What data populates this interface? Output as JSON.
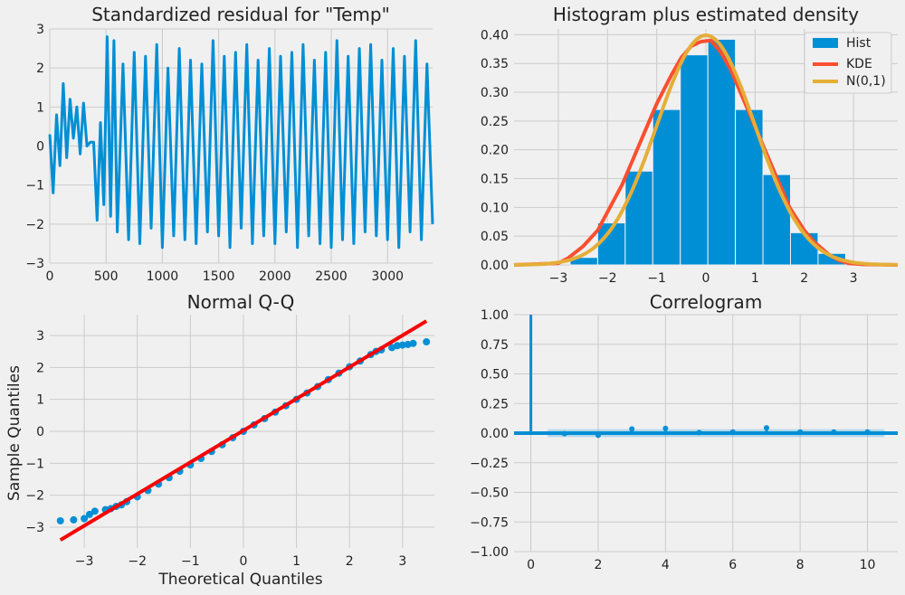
{
  "chart_data": [
    {
      "type": "line",
      "title": "Standardized residual for \"Temp\"",
      "xlabel": "",
      "ylabel": "",
      "xlim": [
        0,
        3400
      ],
      "ylim": [
        -3,
        3
      ],
      "x_ticks": [
        "0",
        "500",
        "1000",
        "1500",
        "2000",
        "2500",
        "3000"
      ],
      "y_ticks": [
        "3",
        "2",
        "1",
        "0",
        "−1",
        "−2",
        "−3"
      ],
      "grid": true,
      "series": [
        {
          "color": "#008fd5",
          "x": [
            0,
            30,
            60,
            90,
            120,
            150,
            180,
            210,
            240,
            270,
            300,
            330,
            360,
            390,
            420,
            450,
            480,
            510,
            540,
            570,
            600,
            650,
            700,
            750,
            800,
            850,
            900,
            950,
            1000,
            1050,
            1100,
            1150,
            1200,
            1250,
            1300,
            1350,
            1400,
            1450,
            1500,
            1550,
            1600,
            1650,
            1700,
            1750,
            1800,
            1850,
            1900,
            1950,
            2000,
            2050,
            2100,
            2150,
            2200,
            2250,
            2300,
            2350,
            2400,
            2450,
            2500,
            2550,
            2600,
            2650,
            2700,
            2750,
            2800,
            2850,
            2900,
            2950,
            3000,
            3050,
            3100,
            3150,
            3200,
            3250,
            3300,
            3350,
            3400
          ],
          "values": [
            0.3,
            -1.2,
            0.8,
            -0.5,
            1.6,
            -0.3,
            1.2,
            0.2,
            1.0,
            -0.2,
            1.1,
            0.0,
            0.1,
            0.1,
            -1.9,
            0.6,
            -1.5,
            2.8,
            -1.8,
            2.7,
            -2.2,
            2.1,
            -2.4,
            2.4,
            -2.5,
            2.3,
            -2.1,
            2.6,
            -2.6,
            2.0,
            -2.3,
            2.5,
            -2.4,
            2.2,
            -2.5,
            2.1,
            -2.2,
            2.7,
            -2.3,
            2.3,
            -2.6,
            2.4,
            -2.1,
            2.6,
            -2.5,
            2.2,
            -2.3,
            2.5,
            -2.5,
            2.3,
            -2.2,
            2.4,
            -2.6,
            2.6,
            -2.3,
            2.2,
            -2.5,
            2.4,
            -2.6,
            2.7,
            -2.4,
            2.3,
            -2.5,
            2.5,
            -2.2,
            2.6,
            -2.3,
            2.2,
            -2.4,
            2.5,
            -2.6,
            2.3,
            -2.2,
            2.7,
            -2.4,
            2.1,
            -2.0
          ]
        }
      ]
    },
    {
      "type": "bar",
      "title": "Histogram plus estimated density",
      "xlabel": "",
      "ylabel": "",
      "xlim": [
        -3.9,
        3.9
      ],
      "ylim": [
        0,
        0.41
      ],
      "x_ticks": [
        "−3",
        "−2",
        "−1",
        "0",
        "1",
        "2",
        "3"
      ],
      "y_ticks": [
        "0.00",
        "0.05",
        "0.10",
        "0.15",
        "0.20",
        "0.25",
        "0.30",
        "0.35",
        "0.40"
      ],
      "grid": true,
      "legend_position": "top-right",
      "bin_edges": [
        -2.76,
        -2.2,
        -1.64,
        -1.08,
        -0.52,
        0.04,
        0.6,
        1.16,
        1.72,
        2.28,
        2.84
      ],
      "values": [
        0.013,
        0.073,
        0.163,
        0.27,
        0.365,
        0.392,
        0.27,
        0.157,
        0.056,
        0.02
      ],
      "series": [
        {
          "name": "Hist",
          "type": "bar",
          "color": "#008fd5"
        },
        {
          "name": "KDE",
          "type": "line",
          "color": "#fc4f30",
          "x": [
            -3.9,
            -3.0,
            -2.8,
            -2.5,
            -2.2,
            -2.0,
            -1.7,
            -1.5,
            -1.2,
            -1.0,
            -0.7,
            -0.5,
            -0.3,
            -0.1,
            0.1,
            0.3,
            0.5,
            0.7,
            1.0,
            1.2,
            1.5,
            1.7,
            2.0,
            2.2,
            2.5,
            2.7,
            2.9,
            3.2,
            3.9
          ],
          "values": [
            0.0,
            0.003,
            0.012,
            0.032,
            0.06,
            0.092,
            0.14,
            0.18,
            0.24,
            0.28,
            0.33,
            0.36,
            0.38,
            0.388,
            0.39,
            0.37,
            0.34,
            0.3,
            0.24,
            0.2,
            0.14,
            0.1,
            0.06,
            0.04,
            0.018,
            0.008,
            0.003,
            0.001,
            0.0
          ]
        },
        {
          "name": "N(0,1)",
          "type": "line",
          "color": "#e5ae38",
          "function": "normal_pdf",
          "mean": 0,
          "std": 1
        }
      ]
    },
    {
      "type": "scatter",
      "title": "Normal Q-Q",
      "xlabel": "Theoretical Quantiles",
      "ylabel": "Sample Quantiles",
      "xlim": [
        -3.65,
        3.6
      ],
      "ylim": [
        -3.65,
        3.65
      ],
      "x_ticks": [
        "−3",
        "−2",
        "−1",
        "0",
        "1",
        "2",
        "3"
      ],
      "y_ticks": [
        "3",
        "2",
        "1",
        "0",
        "−1",
        "−2",
        "−3"
      ],
      "grid": true,
      "series": [
        {
          "type": "scatter",
          "color": "#008fd5",
          "x": [
            -3.45,
            -3.2,
            -3.0,
            -2.9,
            -2.8,
            -2.6,
            -2.5,
            -2.4,
            -2.3,
            -2.2,
            -2.0,
            -1.8,
            -1.6,
            -1.4,
            -1.2,
            -1.0,
            -0.8,
            -0.6,
            -0.4,
            -0.2,
            0.0,
            0.2,
            0.4,
            0.6,
            0.8,
            1.0,
            1.2,
            1.4,
            1.6,
            1.8,
            2.0,
            2.2,
            2.4,
            2.5,
            2.6,
            2.8,
            2.9,
            3.0,
            3.1,
            3.2,
            3.45
          ],
          "values": [
            -2.8,
            -2.77,
            -2.73,
            -2.6,
            -2.5,
            -2.45,
            -2.42,
            -2.35,
            -2.3,
            -2.2,
            -2.05,
            -1.85,
            -1.65,
            -1.45,
            -1.25,
            -1.05,
            -0.85,
            -0.63,
            -0.42,
            -0.2,
            0.0,
            0.2,
            0.4,
            0.6,
            0.8,
            1.0,
            1.2,
            1.4,
            1.62,
            1.82,
            2.02,
            2.2,
            2.4,
            2.5,
            2.55,
            2.62,
            2.68,
            2.7,
            2.72,
            2.75,
            2.8
          ]
        },
        {
          "type": "line",
          "color": "#fc0000",
          "x": [
            -3.45,
            3.45
          ],
          "values": [
            -3.4,
            3.45
          ]
        }
      ]
    },
    {
      "type": "bar",
      "title": "Correlogram",
      "xlabel": "",
      "ylabel": "",
      "xlim": [
        -0.5,
        10.9
      ],
      "ylim": [
        -1.0,
        1.0
      ],
      "x_ticks": [
        "0",
        "2",
        "4",
        "6",
        "8",
        "10"
      ],
      "y_ticks": [
        "1.00",
        "0.75",
        "0.50",
        "0.25",
        "0.00",
        "−0.25",
        "−0.50",
        "−0.75",
        "−1.00"
      ],
      "grid": true,
      "categories": [
        0,
        1,
        2,
        3,
        4,
        5,
        6,
        7,
        8,
        9,
        10
      ],
      "values": [
        1.0,
        -0.005,
        -0.018,
        0.035,
        0.04,
        0.005,
        0.01,
        0.045,
        0.01,
        0.01,
        0.01
      ],
      "confidence_band": [
        -0.033,
        0.033
      ],
      "series": [
        {
          "color": "#008fd5"
        }
      ]
    }
  ]
}
